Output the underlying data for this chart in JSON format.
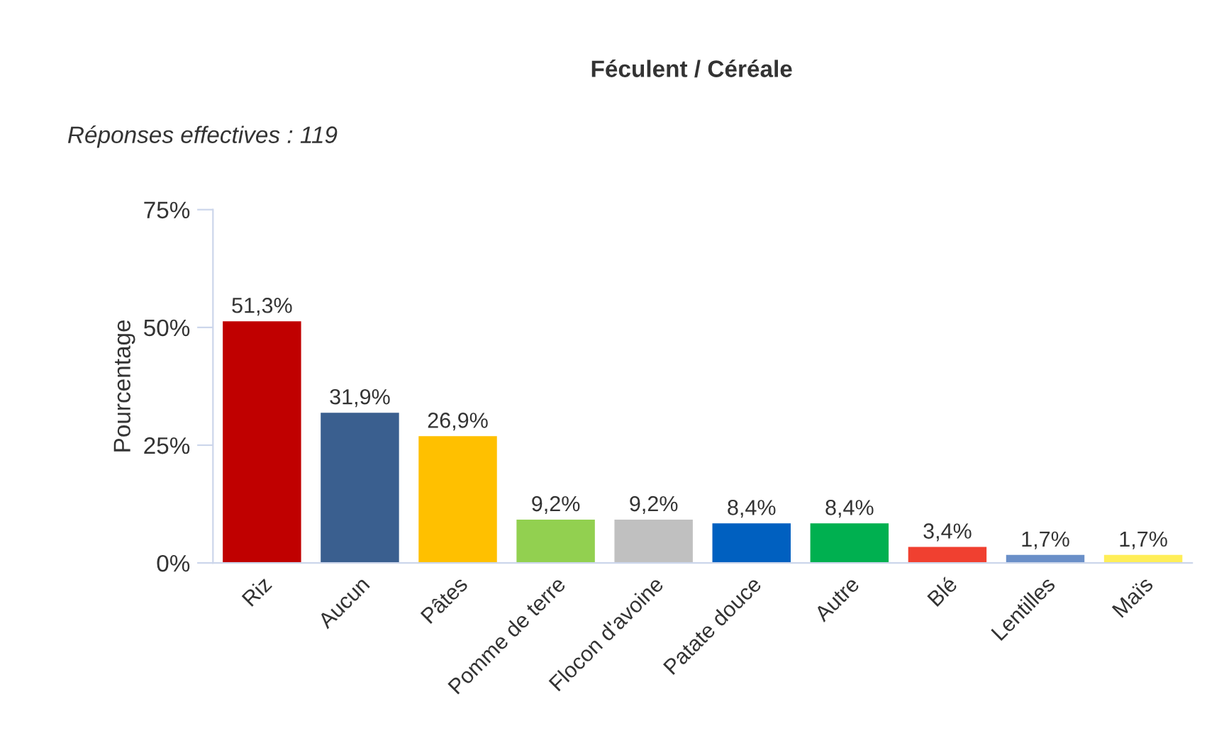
{
  "chart_data": {
    "type": "bar",
    "title": "Féculent / Céréale",
    "subtitle": "Réponses effectives : 119",
    "ylabel": "Pourcentage",
    "categories": [
      "Riz",
      "Aucun",
      "Pâtes",
      "Pomme de terre",
      "Flocon d'avoine",
      "Patate douce",
      "Autre",
      "Blé",
      "Lentilles",
      "Maïs"
    ],
    "values": [
      51.3,
      31.9,
      26.9,
      9.2,
      9.2,
      8.4,
      8.4,
      3.4,
      1.7,
      1.7
    ],
    "colors": [
      "#c00000",
      "#3a5f8f",
      "#ffc000",
      "#92d050",
      "#c0c0c0",
      "#0060c0",
      "#00b050",
      "#f04030",
      "#6a8fc8",
      "#ffee58"
    ],
    "value_labels": [
      "51,3%",
      "31,9%",
      "26,9%",
      "9,2%",
      "9,2%",
      "8,4%",
      "8,4%",
      "3,4%",
      "1,7%",
      "1,7%"
    ],
    "ylim": [
      0,
      75
    ],
    "yticks": [
      {
        "value": 0,
        "label": "0%"
      },
      {
        "value": 25,
        "label": "25%"
      },
      {
        "value": 50,
        "label": "50%"
      },
      {
        "value": 75,
        "label": "75%"
      }
    ],
    "grid": false,
    "legend": false
  }
}
